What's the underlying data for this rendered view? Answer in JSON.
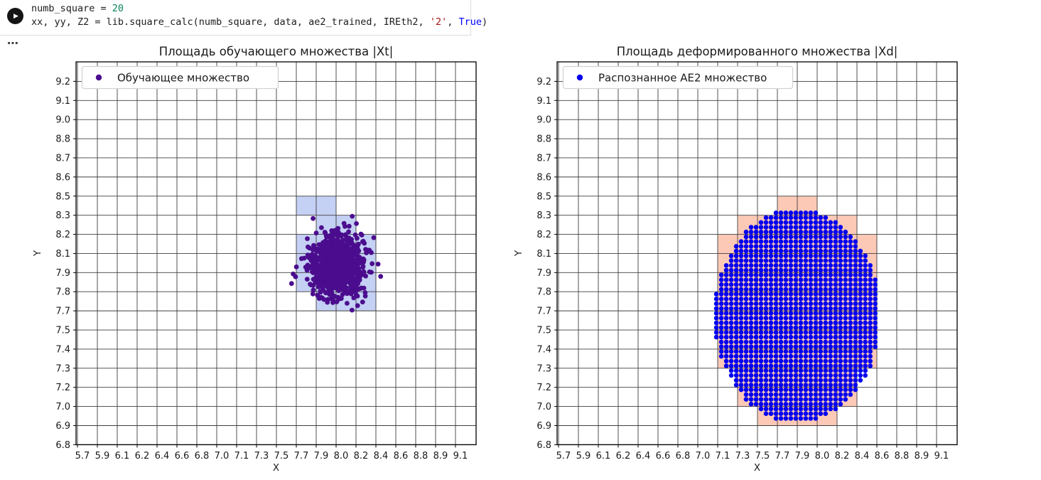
{
  "notebook": {
    "run_button_glyph": "▶",
    "cell_menu_glyph": "⋯",
    "code": {
      "line1": {
        "t0": "numb_square = ",
        "t1": "20"
      },
      "line2": {
        "t0": "xx, yy, Z2 = lib.square_calc(numb_square, data, ae2_trained, IREth2, ",
        "t1": "'2'",
        "t2": ", ",
        "t3": "True",
        "t4": ")"
      }
    }
  },
  "chart_data": [
    {
      "type": "scatter",
      "title": "Площадь обучающего множества |Xt|",
      "xlabel": "X",
      "ylabel": "Y",
      "grid": true,
      "legend_position": "upper left",
      "legend": {
        "label": "Обучающее множество",
        "marker_color": "#4b0d8e"
      },
      "x_ticks": [
        "5.7",
        "5.9",
        "6.1",
        "6.2",
        "6.4",
        "6.6",
        "6.8",
        "7.0",
        "7.1",
        "7.3",
        "7.5",
        "7.7",
        "7.9",
        "8.0",
        "8.2",
        "8.4",
        "8.6",
        "8.8",
        "8.9",
        "9.1"
      ],
      "y_ticks_top_to_bottom": [
        "9.2",
        "9.1",
        "9.0",
        "8.8",
        "8.7",
        "8.6",
        "8.5",
        "8.3",
        "8.2",
        "8.1",
        "7.9",
        "7.8",
        "7.7",
        "7.5",
        "7.4",
        "7.3",
        "7.2",
        "7.0",
        "6.9",
        "6.8"
      ],
      "highlight_cells": {
        "color": "rgba(72,108,220,0.32)",
        "rects": [
          {
            "x": [
              "7.7",
              "8.0"
            ],
            "y": [
              "8.5",
              "8.3"
            ]
          },
          {
            "x": [
              "7.9",
              "8.2"
            ],
            "y": [
              "8.3",
              "8.2"
            ]
          },
          {
            "x": [
              "7.7",
              "8.4"
            ],
            "y": [
              "8.2",
              "7.8"
            ]
          },
          {
            "x": [
              "7.9",
              "8.4"
            ],
            "y": [
              "7.8",
              "7.7"
            ]
          }
        ]
      },
      "scatter": {
        "kind": "gaussian_cluster",
        "n_points": 850,
        "center": [
          8.0,
          7.98
        ],
        "approx_extent_x": [
          7.7,
          8.4
        ],
        "approx_extent_y": [
          7.7,
          8.35
        ],
        "marker_color": "#4b0d8e"
      }
    },
    {
      "type": "scatter",
      "title": "Площадь деформированного множества |Xd|",
      "xlabel": "X",
      "ylabel": "Y",
      "grid": true,
      "legend_position": "upper left",
      "legend": {
        "label": "Распознанное AE2 множество",
        "marker_color": "#0404ee"
      },
      "x_ticks": [
        "5.7",
        "5.9",
        "6.1",
        "6.2",
        "6.4",
        "6.6",
        "6.8",
        "7.0",
        "7.1",
        "7.3",
        "7.5",
        "7.7",
        "7.9",
        "8.0",
        "8.2",
        "8.4",
        "8.6",
        "8.8",
        "8.9",
        "9.1"
      ],
      "y_ticks_top_to_bottom": [
        "9.2",
        "9.1",
        "9.0",
        "8.8",
        "8.7",
        "8.6",
        "8.5",
        "8.3",
        "8.2",
        "8.1",
        "7.9",
        "7.8",
        "7.7",
        "7.5",
        "7.4",
        "7.3",
        "7.2",
        "7.0",
        "6.9",
        "6.8"
      ],
      "highlight_cells": {
        "color": "rgba(246,112,66,0.38)",
        "rects": [
          {
            "x": [
              "7.7",
              "8.0"
            ],
            "y": [
              "8.5",
              "8.3"
            ]
          },
          {
            "x": [
              "7.3",
              "8.4"
            ],
            "y": [
              "8.3",
              "8.2"
            ]
          },
          {
            "x": [
              "7.1",
              "8.6"
            ],
            "y": [
              "8.2",
              "7.3"
            ]
          },
          {
            "x": [
              "7.3",
              "8.4"
            ],
            "y": [
              "7.3",
              "7.0"
            ]
          },
          {
            "x": [
              "7.5",
              "8.2"
            ],
            "y": [
              "7.0",
              "6.9"
            ]
          }
        ]
      },
      "scatter": {
        "kind": "lattice_ellipse",
        "points_per_cell": 4,
        "center": [
          7.9,
          7.65
        ],
        "marker_color": "#0404ee"
      }
    }
  ]
}
